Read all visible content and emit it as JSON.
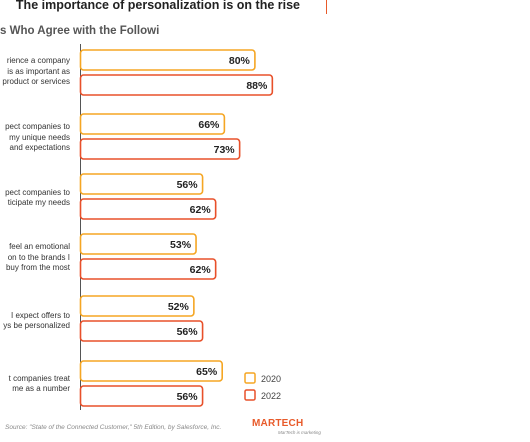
{
  "title": "The importance of personalization is on the rise",
  "subtitle": "s Who Agree with the Following",
  "source": "Source: \"State of the Connected Customer,\" 5th Edition, by Salesforce, Inc.",
  "brand": "MARTECH",
  "brand_tagline": "MarTech is marketing",
  "colors": {
    "2020": "#f5a623",
    "2022": "#e8502a",
    "accent_line": "#e85a2a"
  },
  "chart_data": {
    "type": "bar",
    "orientation": "horizontal",
    "categories": [
      "rience a company\nis as important as\nproduct or services",
      "pect companies to\nmy unique needs\nand expectations",
      "pect companies to\nticipate my needs",
      "feel an emotional\non to the brands I\nbuy from the most",
      "I expect offers to\nys be personalized",
      "t companies treat\nme as a number"
    ],
    "series": [
      {
        "name": "2020",
        "values": [
          80,
          66,
          56,
          53,
          52,
          65
        ],
        "labels": [
          "80%",
          "66%",
          "56%",
          "53%",
          "52%",
          "65%"
        ]
      },
      {
        "name": "2022",
        "values": [
          88,
          73,
          62,
          62,
          56,
          56
        ],
        "labels": [
          "88%",
          "73%",
          "62%",
          "62%",
          "56%",
          "56%"
        ]
      }
    ],
    "legend": "bottom-right",
    "grid": false
  }
}
